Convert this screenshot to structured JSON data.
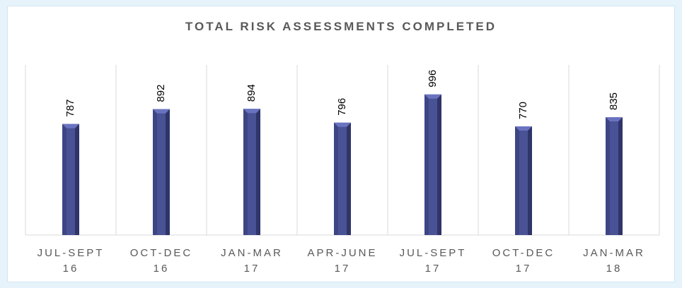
{
  "chart_data": {
    "type": "bar",
    "title": "TOTAL RISK ASSESSMENTS COMPLETED",
    "categories": [
      "JUL-SEPT 16",
      "OCT-DEC 16",
      "JAN-MAR 17",
      "APR-JUNE 17",
      "JUL-SEPT 17",
      "OCT-DEC 17",
      "JAN-MAR 18"
    ],
    "values": [
      787,
      892,
      894,
      796,
      996,
      770,
      835
    ],
    "color": "#4a5296",
    "ylim": [
      0,
      1190
    ],
    "grid": true
  }
}
